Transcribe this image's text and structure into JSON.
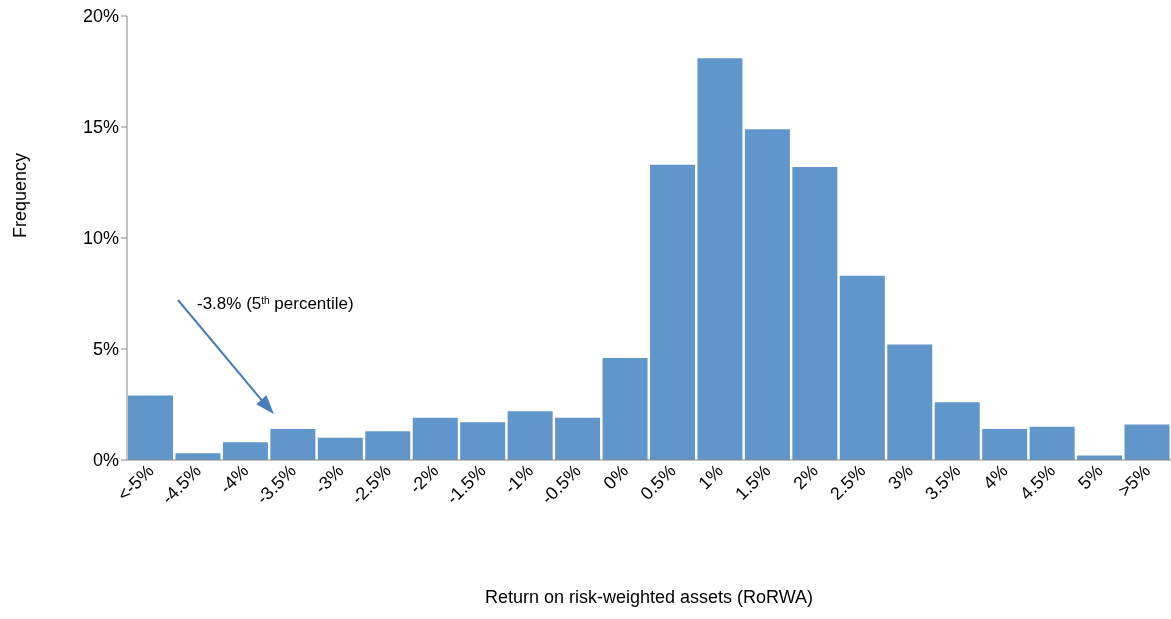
{
  "chart_data": {
    "type": "bar",
    "xlabel": "Return on risk-weighted assets (RoRWA)",
    "ylabel": "Frequency",
    "categories": [
      "<-5%",
      "-4.5%",
      "-4%",
      "-3.5%",
      "-3%",
      "-2.5%",
      "-2%",
      "-1.5%",
      "-1%",
      "-0.5%",
      "0%",
      "0.5%",
      "1%",
      "1.5%",
      "2%",
      "2.5%",
      "3%",
      "3.5%",
      "4%",
      "4.5%",
      "5%",
      ">5%"
    ],
    "values": [
      2.9,
      0.3,
      0.8,
      1.4,
      1.0,
      1.3,
      1.9,
      1.7,
      2.2,
      1.9,
      4.6,
      13.3,
      18.1,
      14.9,
      13.2,
      8.3,
      5.2,
      2.6,
      1.4,
      1.5,
      0.2,
      1.6
    ],
    "color": "#6096c9",
    "ylim": [
      0,
      20
    ],
    "yticks": [
      {
        "value": 0,
        "label": "0%"
      },
      {
        "value": 5,
        "label": "5%"
      },
      {
        "value": 10,
        "label": "10%"
      },
      {
        "value": 15,
        "label": "15%"
      },
      {
        "value": 20,
        "label": "20%"
      }
    ],
    "grid": false,
    "annotations": [
      "-3.8% (5$^{th}$ percentile)"
    ]
  }
}
